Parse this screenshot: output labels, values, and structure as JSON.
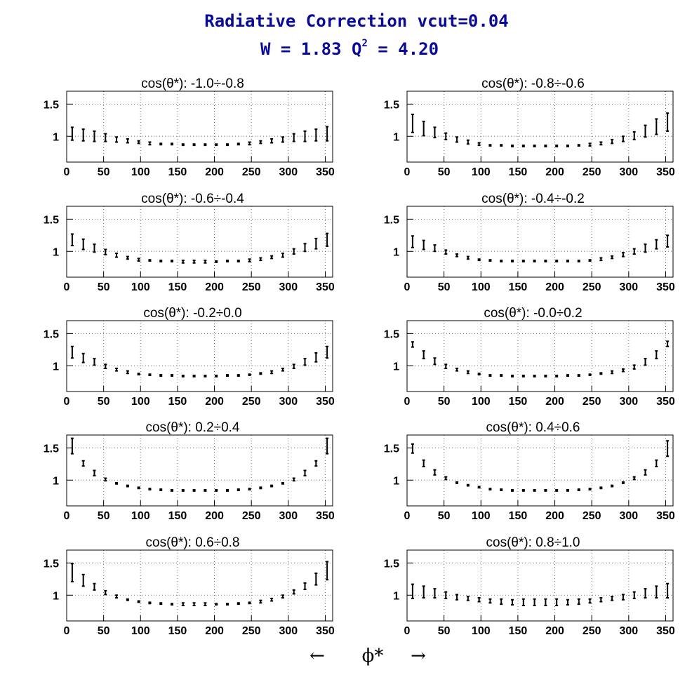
{
  "title": {
    "line1": "Radiative Correction  vcut=0.04",
    "w_label": "W = 1.83  Q",
    "q_exp": "2",
    "q_value": " = 4.20"
  },
  "x_axis_label": {
    "left_arrow": "←",
    "symbol": "ϕ*",
    "right_arrow": "→"
  },
  "colors": {
    "title": "#0a0a9a",
    "marks": "#000000",
    "background": "#ffffff"
  },
  "chart_data": {
    "type": "scatter",
    "grid": true,
    "x": [
      7.5,
      22.5,
      37.5,
      52.5,
      67.5,
      82.5,
      97.5,
      112.5,
      127.5,
      142.5,
      157.5,
      172.5,
      187.5,
      202.5,
      217.5,
      232.5,
      247.5,
      262.5,
      277.5,
      292.5,
      307.5,
      322.5,
      337.5,
      352.5
    ],
    "xlim": [
      0,
      360
    ],
    "ylim": [
      0.6,
      1.7
    ],
    "xticks": [
      0,
      50,
      100,
      150,
      200,
      250,
      300,
      350
    ],
    "yticks": [
      1,
      1.5
    ],
    "panels": [
      {
        "title": "cos(θ*): -1.0÷-0.8",
        "y": [
          1.04,
          1.02,
          1.0,
          0.98,
          0.95,
          0.93,
          0.91,
          0.89,
          0.88,
          0.88,
          0.87,
          0.87,
          0.87,
          0.87,
          0.87,
          0.88,
          0.89,
          0.91,
          0.93,
          0.95,
          0.98,
          1.0,
          1.02,
          1.04
        ],
        "err": [
          0.1,
          0.09,
          0.08,
          0.06,
          0.04,
          0.03,
          0.02,
          0.02,
          0.01,
          0.01,
          0.01,
          0.01,
          0.01,
          0.01,
          0.01,
          0.01,
          0.02,
          0.02,
          0.03,
          0.04,
          0.06,
          0.08,
          0.09,
          0.11
        ]
      },
      {
        "title": "cos(θ*): -0.8÷-0.6",
        "y": [
          1.2,
          1.12,
          1.06,
          1.0,
          0.95,
          0.91,
          0.88,
          0.86,
          0.86,
          0.85,
          0.85,
          0.85,
          0.85,
          0.85,
          0.85,
          0.86,
          0.87,
          0.89,
          0.92,
          0.96,
          1.01,
          1.08,
          1.15,
          1.22
        ],
        "err": [
          0.14,
          0.11,
          0.08,
          0.05,
          0.04,
          0.03,
          0.02,
          0.01,
          0.01,
          0.01,
          0.01,
          0.01,
          0.01,
          0.01,
          0.01,
          0.01,
          0.02,
          0.02,
          0.03,
          0.04,
          0.06,
          0.09,
          0.12,
          0.14
        ]
      },
      {
        "title": "cos(θ*): -0.6÷-0.4",
        "y": [
          1.18,
          1.11,
          1.05,
          0.99,
          0.94,
          0.9,
          0.87,
          0.86,
          0.85,
          0.85,
          0.84,
          0.84,
          0.84,
          0.84,
          0.85,
          0.85,
          0.86,
          0.88,
          0.91,
          0.94,
          1.0,
          1.06,
          1.12,
          1.18
        ],
        "err": [
          0.09,
          0.08,
          0.06,
          0.04,
          0.03,
          0.02,
          0.02,
          0.01,
          0.01,
          0.01,
          0.02,
          0.02,
          0.02,
          0.01,
          0.01,
          0.01,
          0.02,
          0.02,
          0.02,
          0.03,
          0.04,
          0.06,
          0.08,
          0.1
        ]
      },
      {
        "title": "cos(θ*): -0.4÷-0.2",
        "y": [
          1.15,
          1.1,
          1.05,
          0.99,
          0.94,
          0.9,
          0.87,
          0.86,
          0.85,
          0.85,
          0.85,
          0.85,
          0.85,
          0.85,
          0.85,
          0.85,
          0.86,
          0.88,
          0.91,
          0.95,
          1.0,
          1.05,
          1.11,
          1.16
        ],
        "err": [
          0.09,
          0.07,
          0.05,
          0.03,
          0.02,
          0.02,
          0.01,
          0.01,
          0.01,
          0.01,
          0.01,
          0.01,
          0.01,
          0.01,
          0.01,
          0.01,
          0.01,
          0.02,
          0.02,
          0.03,
          0.04,
          0.06,
          0.07,
          0.09
        ]
      },
      {
        "title": "cos(θ*): -0.2÷0.0",
        "y": [
          1.21,
          1.12,
          1.06,
          0.99,
          0.94,
          0.9,
          0.87,
          0.86,
          0.85,
          0.85,
          0.84,
          0.84,
          0.84,
          0.84,
          0.85,
          0.85,
          0.86,
          0.88,
          0.9,
          0.94,
          0.99,
          1.06,
          1.13,
          1.21
        ],
        "err": [
          0.09,
          0.07,
          0.05,
          0.03,
          0.02,
          0.02,
          0.01,
          0.01,
          0.01,
          0.01,
          0.01,
          0.01,
          0.01,
          0.01,
          0.01,
          0.01,
          0.01,
          0.01,
          0.02,
          0.02,
          0.03,
          0.05,
          0.07,
          0.09
        ]
      },
      {
        "title": "cos(θ*): -0.0÷0.2",
        "y": [
          1.33,
          1.17,
          1.07,
          0.99,
          0.94,
          0.9,
          0.87,
          0.85,
          0.85,
          0.84,
          0.84,
          0.84,
          0.84,
          0.84,
          0.85,
          0.85,
          0.86,
          0.88,
          0.9,
          0.93,
          0.98,
          1.06,
          1.17,
          1.34
        ],
        "err": [
          0.04,
          0.06,
          0.05,
          0.03,
          0.02,
          0.02,
          0.01,
          0.01,
          0.01,
          0.01,
          0.01,
          0.01,
          0.01,
          0.01,
          0.01,
          0.01,
          0.01,
          0.01,
          0.02,
          0.02,
          0.03,
          0.05,
          0.06,
          0.04
        ]
      },
      {
        "title": "cos(θ*): 0.2÷0.4",
        "y": [
          1.53,
          1.26,
          1.11,
          1.01,
          0.95,
          0.91,
          0.88,
          0.86,
          0.85,
          0.84,
          0.84,
          0.84,
          0.84,
          0.84,
          0.84,
          0.85,
          0.86,
          0.88,
          0.91,
          0.95,
          1.01,
          1.11,
          1.26,
          1.53
        ],
        "err": [
          0.12,
          0.04,
          0.04,
          0.02,
          0.01,
          0.01,
          0.01,
          0.01,
          0.01,
          0.01,
          0.01,
          0.01,
          0.01,
          0.01,
          0.01,
          0.01,
          0.01,
          0.01,
          0.01,
          0.01,
          0.02,
          0.04,
          0.04,
          0.12
        ]
      },
      {
        "title": "cos(θ*): 0.4÷0.6",
        "y": [
          1.49,
          1.26,
          1.12,
          1.03,
          0.96,
          0.92,
          0.89,
          0.86,
          0.85,
          0.84,
          0.84,
          0.84,
          0.84,
          0.84,
          0.84,
          0.85,
          0.86,
          0.88,
          0.91,
          0.96,
          1.03,
          1.12,
          1.26,
          1.49
        ],
        "err": [
          0.07,
          0.05,
          0.04,
          0.02,
          0.01,
          0.01,
          0.01,
          0.01,
          0.01,
          0.01,
          0.01,
          0.01,
          0.01,
          0.01,
          0.01,
          0.01,
          0.01,
          0.01,
          0.01,
          0.01,
          0.02,
          0.04,
          0.05,
          0.12
        ]
      },
      {
        "title": "cos(θ*): 0.6÷0.8",
        "y": [
          1.35,
          1.23,
          1.13,
          1.04,
          0.98,
          0.93,
          0.9,
          0.88,
          0.87,
          0.86,
          0.86,
          0.86,
          0.86,
          0.86,
          0.86,
          0.87,
          0.88,
          0.9,
          0.93,
          0.98,
          1.05,
          1.14,
          1.25,
          1.38
        ],
        "err": [
          0.14,
          0.09,
          0.05,
          0.03,
          0.02,
          0.01,
          0.01,
          0.01,
          0.01,
          0.01,
          0.02,
          0.02,
          0.02,
          0.01,
          0.01,
          0.01,
          0.01,
          0.02,
          0.02,
          0.02,
          0.03,
          0.05,
          0.09,
          0.14
        ]
      },
      {
        "title": "cos(θ*): 0.8÷1.0",
        "y": [
          1.06,
          1.05,
          1.03,
          1.0,
          0.97,
          0.95,
          0.93,
          0.91,
          0.9,
          0.89,
          0.89,
          0.89,
          0.89,
          0.89,
          0.89,
          0.9,
          0.91,
          0.93,
          0.95,
          0.97,
          1.0,
          1.03,
          1.05,
          1.07
        ],
        "err": [
          0.11,
          0.09,
          0.07,
          0.05,
          0.04,
          0.03,
          0.03,
          0.03,
          0.04,
          0.04,
          0.05,
          0.05,
          0.05,
          0.05,
          0.04,
          0.04,
          0.03,
          0.03,
          0.03,
          0.04,
          0.05,
          0.07,
          0.09,
          0.11
        ]
      }
    ]
  }
}
